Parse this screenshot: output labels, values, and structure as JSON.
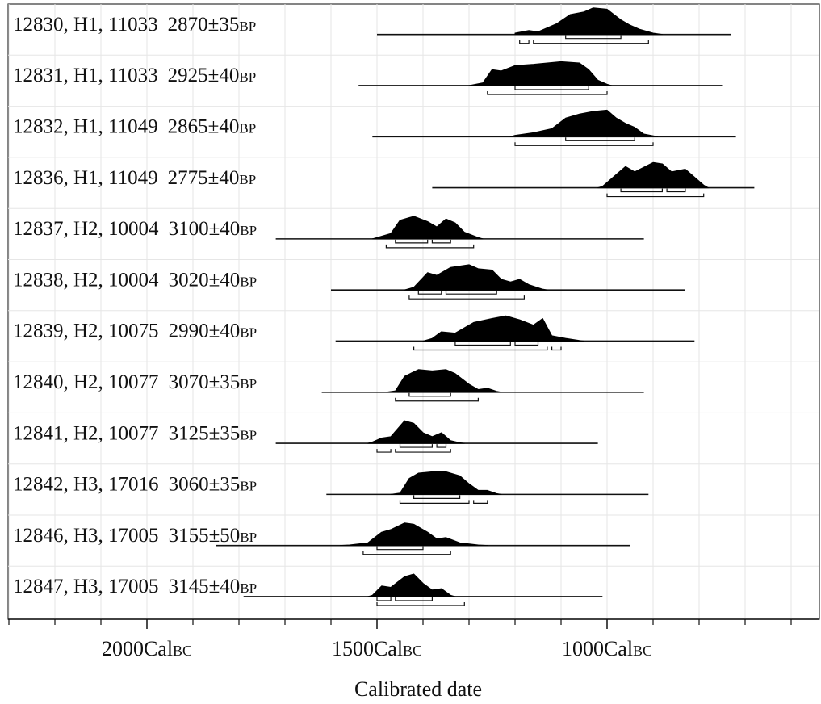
{
  "chart_data": {
    "type": "calibrated-radiocarbon-distribution",
    "xlabel": "Calibrated date",
    "ticks": [
      {
        "value": 2000,
        "main": "2000Cal",
        "suffix": "BC"
      },
      {
        "value": 1500,
        "main": "1500Cal",
        "suffix": "BC"
      },
      {
        "value": 1000,
        "main": "1000Cal",
        "suffix": "BC"
      }
    ],
    "xlim": [
      2300,
      600
    ],
    "rows": [
      {
        "sample": "12830, H1, 11033",
        "age": "2870±35",
        "unit": "BP",
        "peaks": [
          [
            1200,
            0.05
          ],
          [
            1170,
            0.15
          ],
          [
            1150,
            0.1
          ],
          [
            1110,
            0.4
          ],
          [
            1080,
            0.75
          ],
          [
            1050,
            0.85
          ],
          [
            1030,
            1.0
          ],
          [
            1000,
            0.95
          ],
          [
            970,
            0.55
          ],
          [
            950,
            0.35
          ],
          [
            930,
            0.2
          ],
          [
            900,
            0.05
          ]
        ],
        "range_start": 1200,
        "range_end": 880,
        "line": [
          1500,
          730
        ],
        "sig1": [
          [
            1090,
            970
          ]
        ],
        "sig2": [
          [
            1190,
            1170
          ],
          [
            1160,
            910
          ]
        ]
      },
      {
        "sample": "12831, H1, 11033",
        "age": "2925±40",
        "unit": "BP",
        "peaks": [
          [
            1270,
            0.1
          ],
          [
            1250,
            0.6
          ],
          [
            1230,
            0.55
          ],
          [
            1200,
            0.75
          ],
          [
            1160,
            0.8
          ],
          [
            1130,
            0.85
          ],
          [
            1100,
            0.9
          ],
          [
            1060,
            0.85
          ],
          [
            1040,
            0.6
          ],
          [
            1020,
            0.2
          ],
          [
            1000,
            0.05
          ]
        ],
        "range_start": 1300,
        "range_end": 990,
        "line": [
          1540,
          750
        ],
        "sig1": [
          [
            1200,
            1040
          ]
        ],
        "sig2": [
          [
            1260,
            1000
          ]
        ]
      },
      {
        "sample": "12832, H1, 11049",
        "age": "2865±40",
        "unit": "BP",
        "peaks": [
          [
            1200,
            0.05
          ],
          [
            1160,
            0.15
          ],
          [
            1120,
            0.3
          ],
          [
            1090,
            0.7
          ],
          [
            1060,
            0.85
          ],
          [
            1030,
            0.95
          ],
          [
            1000,
            1.0
          ],
          [
            980,
            0.7
          ],
          [
            960,
            0.5
          ],
          [
            940,
            0.35
          ],
          [
            920,
            0.1
          ]
        ],
        "range_start": 1210,
        "range_end": 890,
        "line": [
          1510,
          720
        ],
        "sig1": [
          [
            1090,
            940
          ]
        ],
        "sig2": [
          [
            1200,
            900
          ]
        ]
      },
      {
        "sample": "12836, H1, 11049",
        "age": "2775±40",
        "unit": "BP",
        "peaks": [
          [
            1010,
            0.05
          ],
          [
            990,
            0.35
          ],
          [
            960,
            0.8
          ],
          [
            940,
            0.6
          ],
          [
            900,
            0.95
          ],
          [
            880,
            0.9
          ],
          [
            860,
            0.6
          ],
          [
            830,
            0.7
          ],
          [
            810,
            0.4
          ],
          [
            790,
            0.1
          ]
        ],
        "range_start": 1020,
        "range_end": 780,
        "line": [
          1380,
          680
        ],
        "sig1": [
          [
            970,
            880
          ],
          [
            870,
            830
          ]
        ],
        "sig2": [
          [
            1000,
            790
          ]
        ]
      },
      {
        "sample": "12837, H2, 10004",
        "age": "3100±40",
        "unit": "BP",
        "peaks": [
          [
            1500,
            0.05
          ],
          [
            1470,
            0.2
          ],
          [
            1450,
            0.7
          ],
          [
            1420,
            0.85
          ],
          [
            1390,
            0.65
          ],
          [
            1370,
            0.45
          ],
          [
            1350,
            0.75
          ],
          [
            1330,
            0.6
          ],
          [
            1310,
            0.25
          ],
          [
            1280,
            0.05
          ]
        ],
        "range_start": 1510,
        "range_end": 1270,
        "line": [
          1720,
          920
        ],
        "sig1": [
          [
            1460,
            1390
          ],
          [
            1380,
            1340
          ]
        ],
        "sig2": [
          [
            1480,
            1290
          ]
        ]
      },
      {
        "sample": "12838, H2, 10004",
        "age": "3020±40",
        "unit": "BP",
        "peaks": [
          [
            1420,
            0.1
          ],
          [
            1390,
            0.65
          ],
          [
            1370,
            0.55
          ],
          [
            1340,
            0.85
          ],
          [
            1300,
            0.95
          ],
          [
            1280,
            0.8
          ],
          [
            1250,
            0.75
          ],
          [
            1230,
            0.4
          ],
          [
            1210,
            0.3
          ],
          [
            1190,
            0.4
          ],
          [
            1170,
            0.2
          ],
          [
            1140,
            0.03
          ]
        ],
        "range_start": 1440,
        "range_end": 1130,
        "line": [
          1600,
          830
        ],
        "sig1": [
          [
            1410,
            1360
          ],
          [
            1350,
            1240
          ]
        ],
        "sig2": [
          [
            1430,
            1180
          ]
        ]
      },
      {
        "sample": "12839, H2, 10075",
        "age": "2990±40",
        "unit": "BP",
        "peaks": [
          [
            1380,
            0.1
          ],
          [
            1360,
            0.35
          ],
          [
            1330,
            0.3
          ],
          [
            1290,
            0.7
          ],
          [
            1250,
            0.85
          ],
          [
            1220,
            0.95
          ],
          [
            1190,
            0.8
          ],
          [
            1160,
            0.6
          ],
          [
            1140,
            0.85
          ],
          [
            1120,
            0.2
          ],
          [
            1090,
            0.1
          ],
          [
            1060,
            0.02
          ]
        ],
        "range_start": 1400,
        "range_end": 1050,
        "line": [
          1590,
          810
        ],
        "sig1": [
          [
            1330,
            1210
          ],
          [
            1200,
            1150
          ]
        ],
        "sig2": [
          [
            1420,
            1130
          ],
          [
            1120,
            1100
          ]
        ]
      },
      {
        "sample": "12840, H2, 10077",
        "age": "3070±35",
        "unit": "BP",
        "peaks": [
          [
            1460,
            0.05
          ],
          [
            1440,
            0.6
          ],
          [
            1410,
            0.85
          ],
          [
            1380,
            0.8
          ],
          [
            1350,
            0.85
          ],
          [
            1330,
            0.7
          ],
          [
            1300,
            0.3
          ],
          [
            1280,
            0.1
          ],
          [
            1260,
            0.15
          ],
          [
            1240,
            0.03
          ]
        ],
        "range_start": 1480,
        "range_end": 1230,
        "line": [
          1620,
          920
        ],
        "sig1": [
          [
            1430,
            1340
          ]
        ],
        "sig2": [
          [
            1460,
            1280
          ]
        ]
      },
      {
        "sample": "12841, H2, 10077",
        "age": "3125±35",
        "unit": "BP",
        "peaks": [
          [
            1510,
            0.05
          ],
          [
            1490,
            0.2
          ],
          [
            1470,
            0.25
          ],
          [
            1440,
            0.85
          ],
          [
            1420,
            0.75
          ],
          [
            1400,
            0.4
          ],
          [
            1380,
            0.25
          ],
          [
            1360,
            0.4
          ],
          [
            1340,
            0.1
          ],
          [
            1320,
            0.02
          ]
        ],
        "range_start": 1520,
        "range_end": 1310,
        "line": [
          1720,
          1020
        ],
        "sig1": [
          [
            1450,
            1380
          ],
          [
            1370,
            1350
          ]
        ],
        "sig2": [
          [
            1500,
            1470
          ],
          [
            1460,
            1340
          ]
        ]
      },
      {
        "sample": "12842, H3, 17016",
        "age": "3060±35",
        "unit": "BP",
        "peaks": [
          [
            1450,
            0.05
          ],
          [
            1430,
            0.6
          ],
          [
            1410,
            0.8
          ],
          [
            1380,
            0.85
          ],
          [
            1350,
            0.85
          ],
          [
            1320,
            0.7
          ],
          [
            1300,
            0.4
          ],
          [
            1280,
            0.15
          ],
          [
            1260,
            0.15
          ],
          [
            1240,
            0.03
          ]
        ],
        "range_start": 1470,
        "range_end": 1230,
        "line": [
          1610,
          910
        ],
        "sig1": [
          [
            1420,
            1320
          ]
        ],
        "sig2": [
          [
            1450,
            1300
          ],
          [
            1290,
            1260
          ]
        ]
      },
      {
        "sample": "12846, H3, 17005",
        "age": "3155±50",
        "unit": "BP",
        "peaks": [
          [
            1560,
            0.02
          ],
          [
            1520,
            0.1
          ],
          [
            1490,
            0.5
          ],
          [
            1470,
            0.6
          ],
          [
            1440,
            0.85
          ],
          [
            1420,
            0.8
          ],
          [
            1390,
            0.5
          ],
          [
            1370,
            0.25
          ],
          [
            1350,
            0.3
          ],
          [
            1320,
            0.1
          ],
          [
            1280,
            0.02
          ]
        ],
        "range_start": 1580,
        "range_end": 1260,
        "line": [
          1850,
          950
        ],
        "sig1": [
          [
            1500,
            1400
          ]
        ],
        "sig2": [
          [
            1530,
            1340
          ]
        ]
      },
      {
        "sample": "12847, H3, 17005",
        "age": "3145±40",
        "unit": "BP",
        "peaks": [
          [
            1510,
            0.05
          ],
          [
            1490,
            0.4
          ],
          [
            1470,
            0.35
          ],
          [
            1440,
            0.75
          ],
          [
            1420,
            0.85
          ],
          [
            1400,
            0.5
          ],
          [
            1380,
            0.25
          ],
          [
            1360,
            0.3
          ],
          [
            1340,
            0.05
          ]
        ],
        "range_start": 1520,
        "range_end": 1330,
        "line": [
          1790,
          1010
        ],
        "sig1": [
          [
            1500,
            1470
          ],
          [
            1460,
            1380
          ]
        ],
        "sig2": [
          [
            1500,
            1310
          ]
        ]
      }
    ]
  }
}
